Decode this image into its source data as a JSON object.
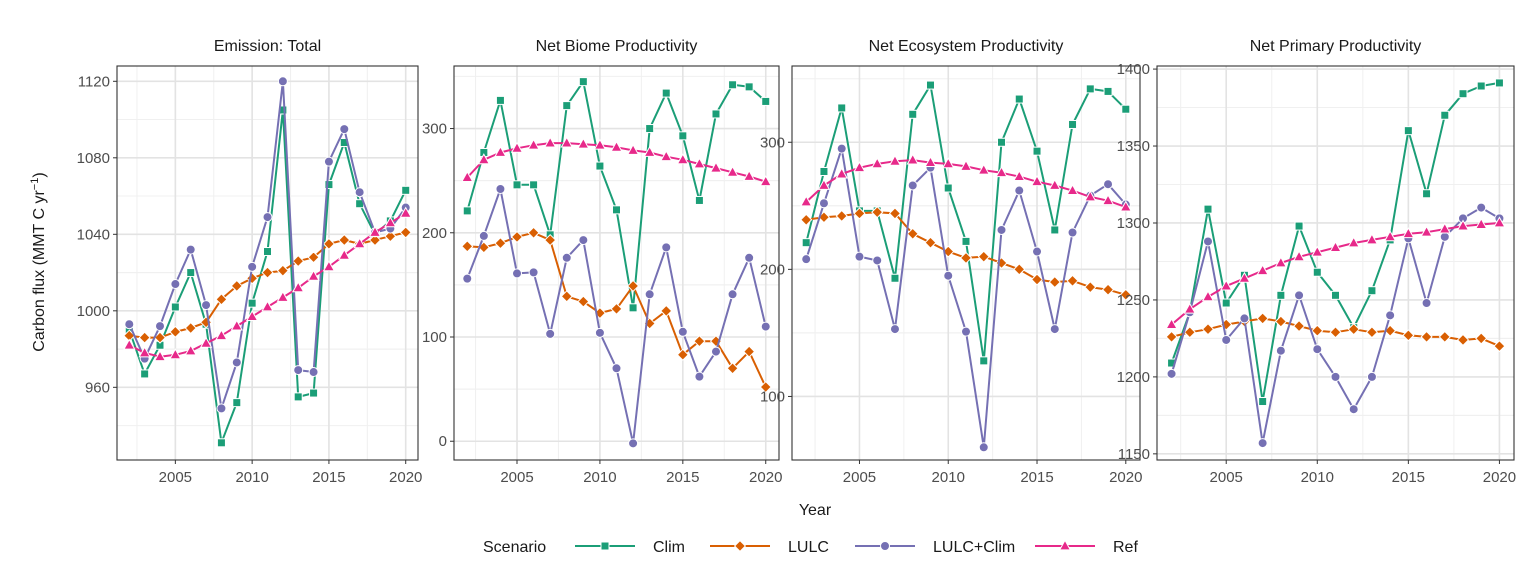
{
  "chart_data": {
    "type": "line",
    "xlabel": "Year",
    "ylabel": "Carbon flux (MMT C yr",
    "ylabel_sup": "−1",
    "ylabel_end": ")",
    "legend_title": "Scenario",
    "legend_position": "bottom",
    "grid": true,
    "x": [
      2002,
      2003,
      2004,
      2005,
      2006,
      2007,
      2008,
      2009,
      2010,
      2011,
      2012,
      2013,
      2014,
      2015,
      2016,
      2017,
      2018,
      2019,
      2020
    ],
    "styles": {
      "Clim": {
        "color": "#1b9e77",
        "marker": "square"
      },
      "LULC": {
        "color": "#d95f02",
        "marker": "diamond"
      },
      "LULC+Clim": {
        "color": "#7570b3",
        "marker": "circle"
      },
      "Ref": {
        "color": "#e7298a",
        "marker": "triangle"
      }
    },
    "series_order": [
      "Clim",
      "LULC",
      "LULC+Clim",
      "Ref"
    ],
    "panels": [
      {
        "title": "Emission: Total",
        "xlim": [
          2001.2,
          2020.8
        ],
        "ylim": [
          922,
          1128
        ],
        "xticks": [
          2005,
          2010,
          2015,
          2020
        ],
        "yticks": [
          960,
          1000,
          1040,
          1080,
          1120
        ],
        "series": [
          {
            "name": "Clim",
            "values": [
              990,
              967,
              982,
              1002,
              1020,
              993,
              931,
              952,
              1004,
              1031,
              1105,
              955,
              957,
              1066,
              1088,
              1056,
              1040,
              1047,
              1063
            ]
          },
          {
            "name": "LULC",
            "values": [
              987,
              986,
              986,
              989,
              991,
              994,
              1006,
              1013,
              1017,
              1020,
              1021,
              1026,
              1028,
              1035,
              1037,
              1035,
              1037,
              1039,
              1041
            ]
          },
          {
            "name": "LULC+Clim",
            "values": [
              993,
              975,
              992,
              1014,
              1032,
              1003,
              949,
              973,
              1023,
              1049,
              1120,
              969,
              968,
              1078,
              1095,
              1062,
              1041,
              1043,
              1054
            ]
          },
          {
            "name": "Ref",
            "values": [
              982,
              978,
              976,
              977,
              979,
              983,
              987,
              992,
              997,
              1002,
              1007,
              1012,
              1018,
              1023,
              1029,
              1035,
              1041,
              1046,
              1051
            ]
          }
        ]
      },
      {
        "title": "Net Biome Productivity",
        "xlim": [
          2001.2,
          2020.8
        ],
        "ylim": [
          -18,
          360
        ],
        "xticks": [
          2005,
          2010,
          2015,
          2020
        ],
        "yticks": [
          0,
          100,
          200,
          300
        ],
        "series": [
          {
            "name": "Clim",
            "values": [
              221,
              277,
              327,
              246,
              246,
              198,
              322,
              345,
              264,
              222,
              128,
              300,
              334,
              293,
              231,
              314,
              342,
              340,
              326
            ]
          },
          {
            "name": "LULC",
            "values": [
              187,
              186,
              190,
              196,
              200,
              193,
              139,
              134,
              123,
              127,
              149,
              113,
              125,
              83,
              96,
              96,
              70,
              86,
              52
            ]
          },
          {
            "name": "LULC+Clim",
            "values": [
              156,
              197,
              242,
              161,
              162,
              103,
              176,
              193,
              104,
              70,
              -2,
              141,
              186,
              105,
              62,
              86,
              141,
              176,
              110
            ]
          },
          {
            "name": "Ref",
            "values": [
              253,
              270,
              277,
              281,
              284,
              286,
              286,
              285,
              284,
              282,
              279,
              277,
              273,
              270,
              266,
              262,
              258,
              254,
              249
            ]
          }
        ]
      },
      {
        "title": "Net Ecosystem Productivity",
        "xlim": [
          2001.2,
          2020.8
        ],
        "ylim": [
          50,
          360
        ],
        "xticks": [
          2005,
          2010,
          2015,
          2020
        ],
        "yticks": [
          100,
          200,
          300
        ],
        "series": [
          {
            "name": "Clim",
            "values": [
              221,
              277,
              327,
              246,
              246,
              193,
              322,
              345,
              264,
              222,
              128,
              300,
              334,
              293,
              231,
              314,
              342,
              340,
              326
            ]
          },
          {
            "name": "LULC",
            "values": [
              239,
              241,
              242,
              244,
              245,
              244,
              228,
              221,
              214,
              209,
              210,
              205,
              200,
              192,
              190,
              191,
              186,
              184,
              180
            ]
          },
          {
            "name": "LULC+Clim",
            "values": [
              208,
              252,
              295,
              210,
              207,
              153,
              266,
              280,
              195,
              151,
              60,
              231,
              262,
              214,
              153,
              229,
              258,
              267,
              251
            ]
          },
          {
            "name": "Ref",
            "values": [
              253,
              266,
              275,
              280,
              283,
              285,
              286,
              284,
              283,
              281,
              278,
              276,
              273,
              269,
              266,
              262,
              257,
              254,
              249
            ]
          }
        ]
      },
      {
        "title": "Net Primary Productivity",
        "xlim": [
          2001.2,
          2020.8
        ],
        "ylim": [
          1146,
          1402
        ],
        "xticks": [
          2005,
          2010,
          2015,
          2020
        ],
        "yticks": [
          1150,
          1200,
          1250,
          1300,
          1350,
          1400
        ],
        "series": [
          {
            "name": "Clim",
            "values": [
              1209,
              1242,
              1309,
              1248,
              1266,
              1184,
              1253,
              1298,
              1268,
              1253,
              1232,
              1256,
              1289,
              1360,
              1319,
              1370,
              1384,
              1389,
              1391
            ]
          },
          {
            "name": "LULC",
            "values": [
              1226,
              1229,
              1231,
              1234,
              1236,
              1238,
              1236,
              1233,
              1230,
              1229,
              1231,
              1229,
              1230,
              1227,
              1226,
              1226,
              1224,
              1225,
              1220
            ]
          },
          {
            "name": "LULC+Clim",
            "values": [
              1202,
              1242,
              1288,
              1224,
              1238,
              1157,
              1217,
              1253,
              1218,
              1200,
              1179,
              1200,
              1240,
              1290,
              1248,
              1291,
              1303,
              1310,
              1303
            ]
          },
          {
            "name": "Ref",
            "values": [
              1234,
              1244,
              1252,
              1259,
              1264,
              1269,
              1274,
              1278,
              1281,
              1284,
              1287,
              1289,
              1291,
              1293,
              1294,
              1296,
              1298,
              1299,
              1300
            ]
          }
        ]
      }
    ]
  }
}
